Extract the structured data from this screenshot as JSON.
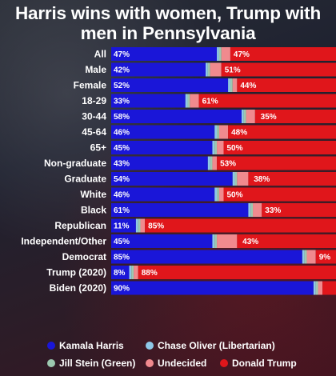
{
  "title_line1": "Harris wins with women, Trump with",
  "title_line2": "men in Pennsylvania",
  "chart_data": {
    "type": "bar",
    "stacked": true,
    "orientation": "horizontal",
    "categories": [
      "All",
      "Male",
      "Female",
      "18-29",
      "30-44",
      "45-64",
      "65+",
      "Non-graduate",
      "Graduate",
      "White",
      "Black",
      "Republican",
      "Independent/Other",
      "Democrat",
      "Trump (2020)",
      "Biden (2020)"
    ],
    "series": [
      {
        "name": "Kamala Harris",
        "color": "#1a16d8",
        "values": [
          47,
          42,
          52,
          33,
          58,
          46,
          45,
          43,
          54,
          46,
          61,
          11,
          45,
          85,
          8,
          90
        ]
      },
      {
        "name": "Chase Oliver (Libertarian)",
        "color": "#8ec8e8",
        "values": [
          1,
          1,
          1,
          1,
          1,
          1,
          1,
          1,
          1,
          1,
          1,
          1,
          1,
          1,
          1,
          1
        ]
      },
      {
        "name": "Jill Stein (Green)",
        "color": "#9cc9b0",
        "values": [
          1,
          1,
          1,
          1,
          1,
          1,
          1,
          1,
          1,
          1,
          1,
          1,
          1,
          1,
          1,
          1
        ]
      },
      {
        "name": "Undecided",
        "color": "#f08a8e",
        "values": [
          4,
          5,
          2,
          4,
          4,
          4,
          3,
          2,
          5,
          2,
          4,
          2,
          9,
          4,
          2,
          2
        ]
      },
      {
        "name": "Donald Trump",
        "color": "#e0161b",
        "values": [
          47,
          51,
          44,
          61,
          35,
          48,
          50,
          53,
          38,
          50,
          33,
          85,
          43,
          9,
          88,
          6
        ]
      }
    ],
    "data_labels": [
      [
        "47%",
        "47%"
      ],
      [
        "42%",
        "51%"
      ],
      [
        "52%",
        "44%"
      ],
      [
        "33%",
        "61%"
      ],
      [
        "58%",
        "35%"
      ],
      [
        "46%",
        "48%"
      ],
      [
        "45%",
        "50%"
      ],
      [
        "43%",
        "53%"
      ],
      [
        "54%",
        "38%"
      ],
      [
        "46%",
        "50%"
      ],
      [
        "61%",
        "33%"
      ],
      [
        "11%",
        "85%"
      ],
      [
        "45%",
        "43%"
      ],
      [
        "85%",
        "9%"
      ],
      [
        "8%",
        "88%"
      ],
      [
        "90%",
        ""
      ]
    ],
    "xlim": [
      0,
      100
    ],
    "legend_position": "bottom"
  }
}
